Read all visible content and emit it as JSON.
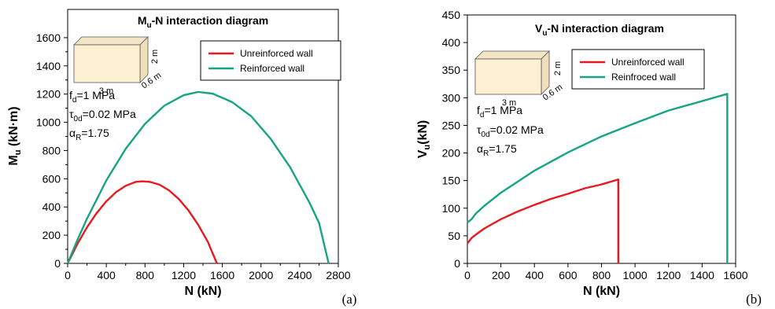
{
  "chart_data": [
    {
      "type": "line",
      "panel_label": "(a)",
      "title_main": "M",
      "title_sub": "u",
      "title_rest": "-N interaction diagram",
      "xlabel": "N (kN)",
      "ylabel_main": "M",
      "ylabel_sub": "u",
      "ylabel_rest": " (kN·m)",
      "xlim": [
        0,
        2800
      ],
      "ylim": [
        0,
        1800
      ],
      "xticks": [
        0,
        400,
        800,
        1200,
        1600,
        2000,
        2400,
        2800
      ],
      "yticks": [
        0,
        200,
        400,
        600,
        800,
        1000,
        1200,
        1400,
        1600
      ],
      "legend_position": "top-right",
      "wall_dims": [
        "3 m",
        "2 m",
        "0.6 m"
      ],
      "params": [
        {
          "main": "f",
          "sub": "d",
          "rest": "=1 MPa"
        },
        {
          "main": "τ",
          "sub": "0d",
          "rest": "=0.02 MPa"
        },
        {
          "main": "α",
          "sub": "R",
          "rest": "=1.75"
        }
      ],
      "series": [
        {
          "name": "Unreinforced wall",
          "color": "#e8191f",
          "x": [
            0,
            100,
            200,
            300,
            400,
            500,
            600,
            700,
            772,
            850,
            950,
            1050,
            1150,
            1250,
            1350,
            1450,
            1544
          ],
          "y": [
            0,
            137,
            256,
            357,
            440,
            505,
            550,
            577,
            582,
            578,
            558,
            517,
            456,
            375,
            274,
            153,
            0
          ]
        },
        {
          "name": "Reinforced wall",
          "color": "#17a482",
          "x": [
            0,
            100,
            200,
            400,
            600,
            800,
            1000,
            1200,
            1350,
            1500,
            1700,
            1900,
            2100,
            2300,
            2500,
            2600,
            2700
          ],
          "y": [
            0,
            165,
            317,
            588,
            812,
            989,
            1118,
            1192,
            1215,
            1203,
            1144,
            1042,
            883,
            683,
            433,
            288,
            0
          ]
        }
      ]
    },
    {
      "type": "line",
      "panel_label": "(b)",
      "title_main": "V",
      "title_sub": "u",
      "title_rest": "-N interaction diagram",
      "xlabel": "N (kN)",
      "ylabel_main": "V",
      "ylabel_sub": "u",
      "ylabel_rest": "(kN)",
      "xlim": [
        0,
        1600
      ],
      "ylim": [
        0,
        450
      ],
      "xticks": [
        0,
        200,
        400,
        600,
        800,
        1000,
        1200,
        1400,
        1600
      ],
      "yticks": [
        0,
        50,
        100,
        150,
        200,
        250,
        300,
        350,
        400,
        450
      ],
      "legend_position": "top-right",
      "wall_dims": [
        "3 m",
        "2 m",
        "0.6 m"
      ],
      "params": [
        {
          "main": "f",
          "sub": "d",
          "rest": "=1 MPa"
        },
        {
          "main": "τ",
          "sub": "0d",
          "rest": "=0.02 MPa"
        },
        {
          "main": "α",
          "sub": "R",
          "rest": "=1.75"
        }
      ],
      "series": [
        {
          "name": "Unreinforced wall",
          "color": "#e8191f",
          "x": [
            0,
            25,
            50,
            100,
            200,
            300,
            400,
            500,
            600,
            700,
            800,
            900,
            900
          ],
          "y": [
            36,
            46,
            52,
            63,
            80,
            94,
            106,
            117,
            126,
            136,
            143,
            152,
            0
          ]
        },
        {
          "name": "Reinfroced wall",
          "color": "#17a482",
          "x": [
            0,
            25,
            50,
            100,
            200,
            400,
            600,
            800,
            1000,
            1200,
            1400,
            1550,
            1550
          ],
          "y": [
            74,
            80,
            90,
            104,
            128,
            168,
            201,
            230,
            254,
            277,
            294,
            307,
            0
          ]
        }
      ]
    }
  ]
}
